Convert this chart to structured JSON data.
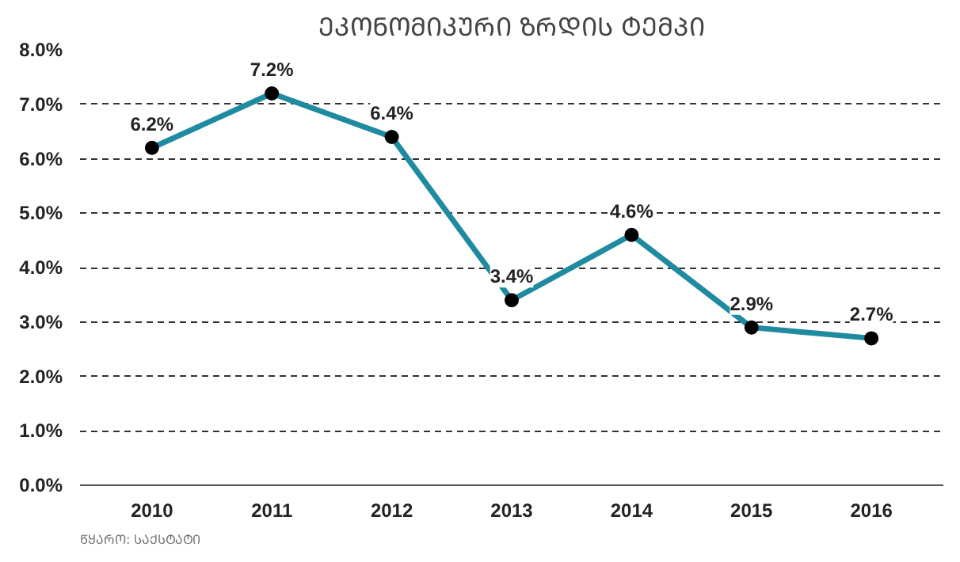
{
  "chart_data": {
    "type": "line",
    "title": "ᲔᲙᲝᲜᲝᲛᲘᲙᲣᲠᲘ ᲖᲠᲓᲘᲡ ᲢᲔᲛᲞᲘ",
    "categories": [
      "2010",
      "2011",
      "2012",
      "2013",
      "2014",
      "2015",
      "2016"
    ],
    "series": [
      {
        "color": "#1f8ba0",
        "values": [
          6.2,
          7.2,
          6.4,
          3.4,
          4.6,
          2.9,
          2.7
        ],
        "value_labels": [
          "6.2%",
          "7.2%",
          "6.4%",
          "3.4%",
          "4.6%",
          "2.9%",
          "2.7%"
        ]
      }
    ],
    "ylim": [
      0,
      8
    ],
    "yticks": [
      {
        "value": 0,
        "label": "0.0%"
      },
      {
        "value": 1,
        "label": "1.0%"
      },
      {
        "value": 2,
        "label": "2.0%"
      },
      {
        "value": 3,
        "label": "3.0%"
      },
      {
        "value": 4,
        "label": "4.0%"
      },
      {
        "value": 5,
        "label": "5.0%"
      },
      {
        "value": 6,
        "label": "6.0%"
      },
      {
        "value": 7,
        "label": "7.0%"
      },
      {
        "value": 8,
        "label": "8.0%"
      }
    ],
    "grid": "y",
    "marker": "circle",
    "line_style": "solid",
    "annotations": [
      "ᲬᲧᲐᲠᲝ: ᲡᲐᲥᲡᲢᲐᲢᲘ"
    ]
  }
}
